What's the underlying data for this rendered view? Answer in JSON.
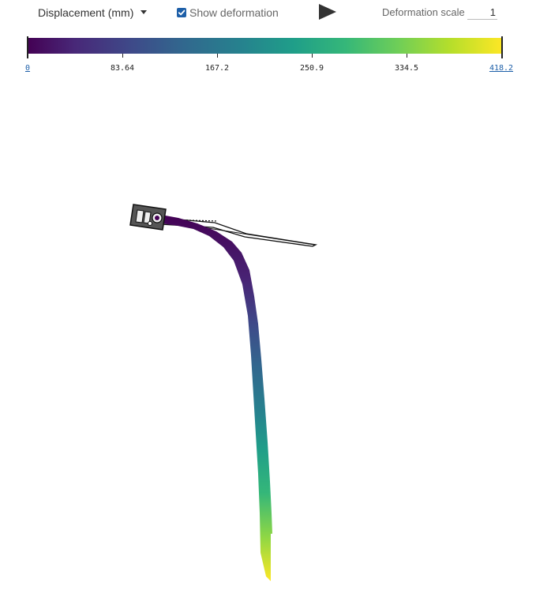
{
  "toolbar": {
    "result_type": "Displacement (mm)",
    "show_deformation_label": "Show deformation",
    "show_deformation_checked": true,
    "deformation_scale_label": "Deformation scale",
    "deformation_scale_value": "1",
    "play_icon": "play-icon",
    "dropdown_icon": "chevron-down-icon"
  },
  "legend": {
    "colormap": "viridis",
    "ticks": [
      "0",
      "83.64",
      "167.2",
      "250.9",
      "334.5",
      "418.2"
    ],
    "colors": [
      "#440154",
      "#482878",
      "#3e4a89",
      "#31688e",
      "#26828e",
      "#1f9e89",
      "#35b779",
      "#6ece58",
      "#b5de2b",
      "#fde725"
    ]
  },
  "colors": {
    "accent": "#1d5fa8",
    "part_gray": "#555555"
  }
}
